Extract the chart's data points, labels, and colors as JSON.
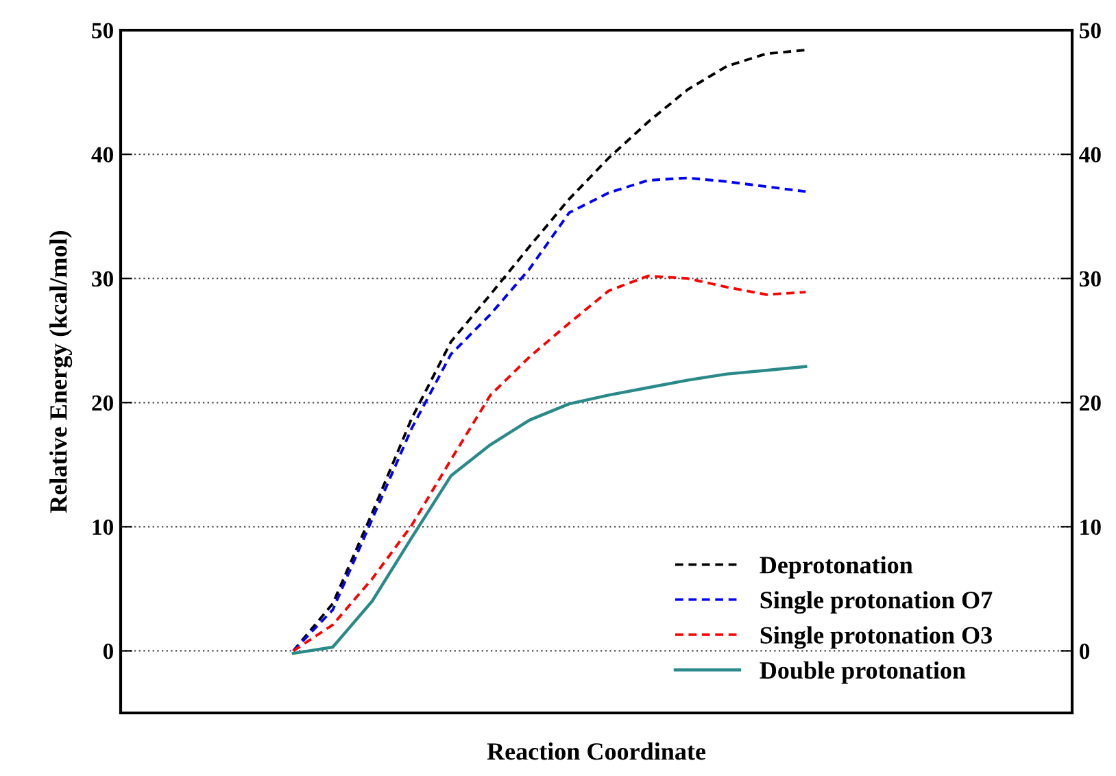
{
  "chart_data": {
    "type": "line",
    "xlabel": "Reaction Coordinate",
    "ylabel": "Relative Energy (kcal/mol)",
    "categories": [
      null,
      null,
      null,
      null,
      null,
      null,
      null,
      null,
      null,
      null,
      null,
      null,
      null,
      null
    ],
    "ylim": [
      -5,
      50
    ],
    "yticks": [
      0,
      10,
      20,
      30,
      40,
      50
    ],
    "y2lim": [
      -5,
      50
    ],
    "y2ticks": [
      0,
      10,
      20,
      30,
      40,
      50
    ],
    "grid": "y",
    "legend": "bottom right",
    "marker": "none",
    "series": [
      {
        "name": "Deprotonation",
        "color": "#000000",
        "line_style": "dashed",
        "values": [
          0,
          3.8,
          11.1,
          18.7,
          24.9,
          28.7,
          32.6,
          36.4,
          39.7,
          42.6,
          45.2,
          47.1,
          48.1,
          48.4
        ]
      },
      {
        "name": "Single protonation O7",
        "color": "#0000ff",
        "line_style": "dashed",
        "values": [
          0,
          3.3,
          10.6,
          17.9,
          23.9,
          27.1,
          30.8,
          35.3,
          36.9,
          37.9,
          38.1,
          37.8,
          37.4,
          37
        ]
      },
      {
        "name": "Single protonation O3",
        "color": "#ff0000",
        "line_style": "dashed",
        "values": [
          0,
          2.1,
          5.8,
          10.1,
          15.4,
          20.6,
          23.7,
          26.4,
          29.0,
          30.2,
          30.0,
          29.3,
          28.7,
          28.9
        ]
      },
      {
        "name": "Double protonation",
        "color": "#2a8a8a",
        "line_style": "solid",
        "values": [
          -0.2,
          0.3,
          4.0,
          9.1,
          14.1,
          16.6,
          18.6,
          19.9,
          20.6,
          21.2,
          21.8,
          22.3,
          22.6,
          22.9
        ]
      }
    ]
  }
}
